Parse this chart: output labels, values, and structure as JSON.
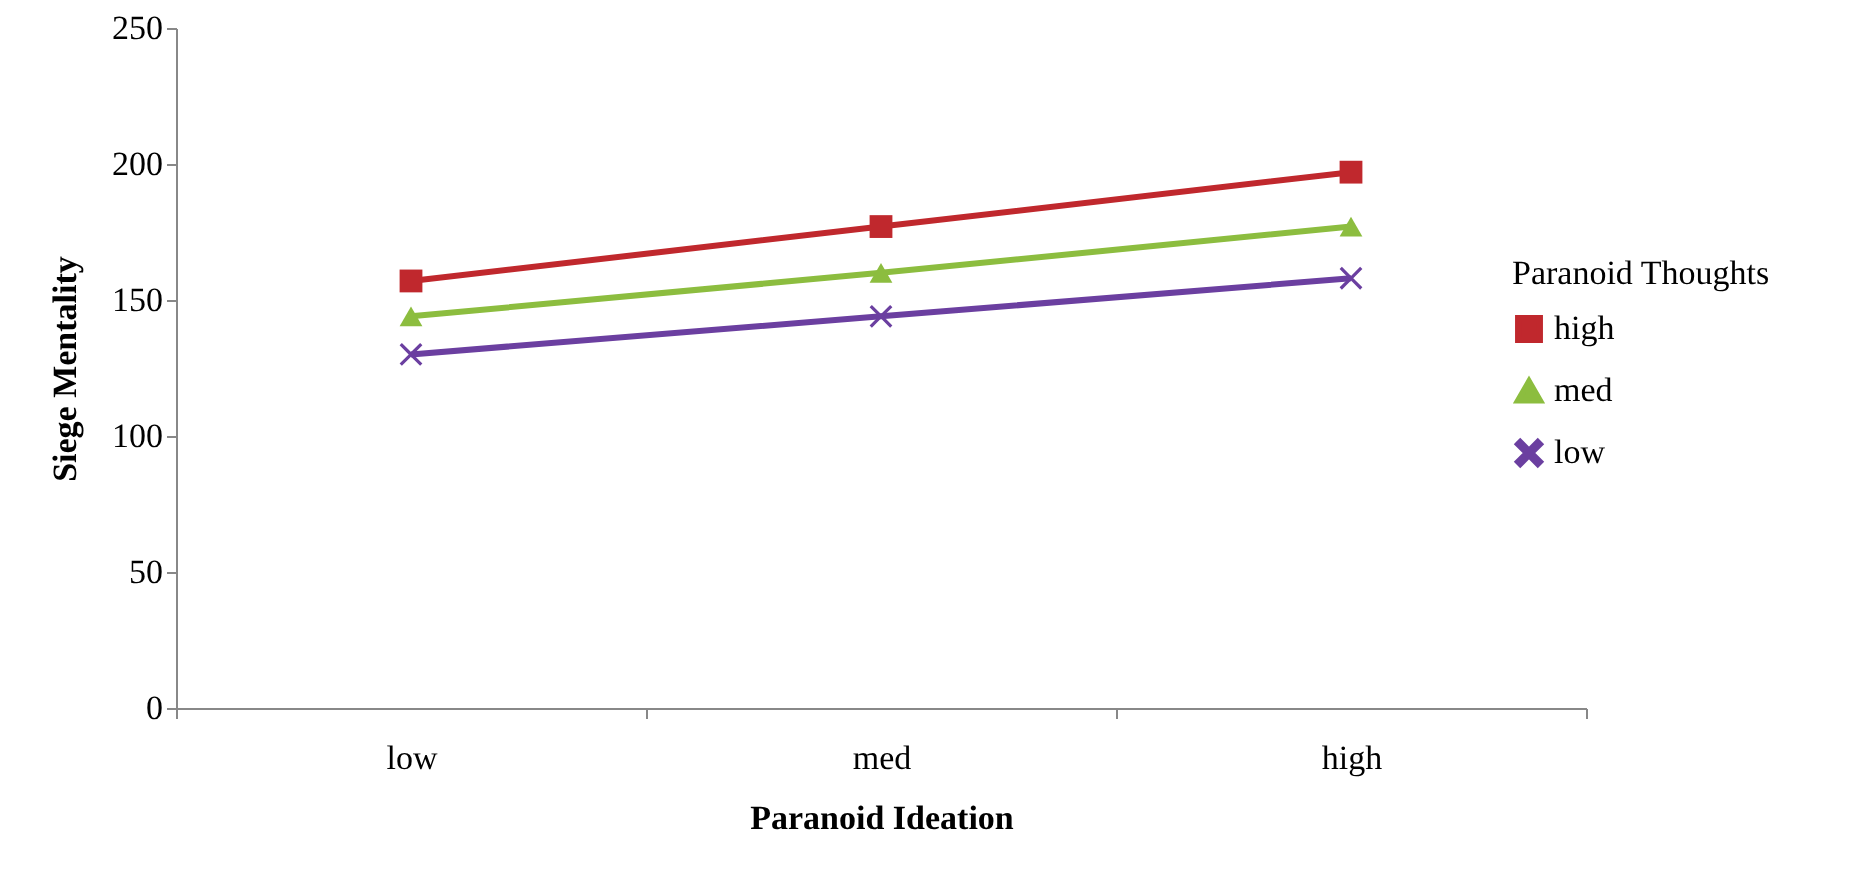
{
  "chart_data": {
    "type": "line",
    "xlabel": "Paranoid Ideation",
    "ylabel": "Siege Mentality",
    "legend_title": "Paranoid Thoughts",
    "categories": [
      "low",
      "med",
      "high"
    ],
    "series": [
      {
        "name": "high",
        "color": "#c0282d",
        "marker": "square",
        "values": [
          157,
          177,
          197
        ]
      },
      {
        "name": "med",
        "color": "#8cbd3f",
        "marker": "triangle",
        "values": [
          144,
          160,
          177
        ]
      },
      {
        "name": "low",
        "color": "#6b3fa0",
        "marker": "cross",
        "values": [
          130,
          144,
          158
        ]
      }
    ],
    "ylim": [
      0,
      250
    ],
    "yticks": [
      0,
      50,
      100,
      150,
      200,
      250
    ],
    "grid": false,
    "legend": "right"
  }
}
